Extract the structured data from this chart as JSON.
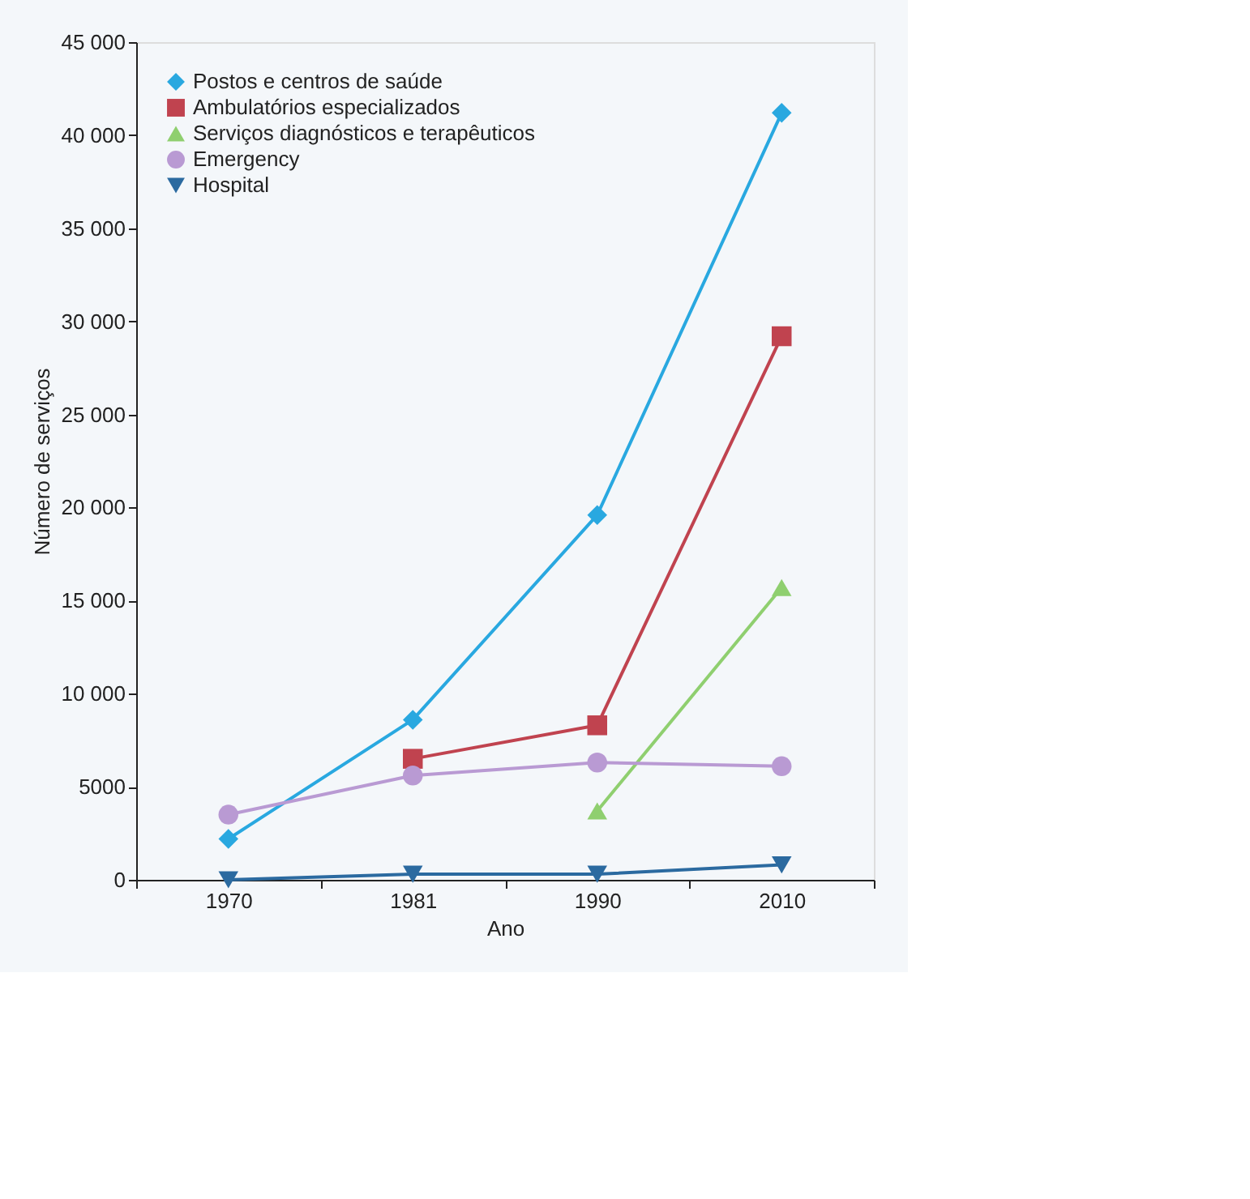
{
  "chart_data": {
    "type": "line",
    "xlabel": "Ano",
    "ylabel": "Número de serviços",
    "categories": [
      "1970",
      "1981",
      "1990",
      "2010"
    ],
    "series": [
      {
        "name": "Postos e centros de saúde",
        "color": "#29a8e0",
        "marker": "diamond",
        "values": [
          2200,
          8600,
          19600,
          41200
        ]
      },
      {
        "name": "Ambulatórios especializados",
        "color": "#c0434f",
        "marker": "square",
        "values": [
          null,
          6500,
          8300,
          29200
        ]
      },
      {
        "name": "Serviços diagnósticos e terapêuticos",
        "color": "#8fcf6f",
        "marker": "triangle",
        "values": [
          null,
          null,
          3700,
          15700
        ]
      },
      {
        "name": "Emergency",
        "color": "#b99ad3",
        "marker": "circle",
        "values": [
          3500,
          5600,
          6300,
          6100
        ]
      },
      {
        "name": "Hospital",
        "color": "#2b6aa0",
        "marker": "triangle-down",
        "values": [
          0,
          300,
          300,
          800
        ]
      }
    ],
    "ylim": [
      0,
      45000
    ],
    "yticks": [
      0,
      5000,
      {
        "value": 10000,
        "label": "10 000"
      },
      {
        "value": 15000,
        "label": "15 000"
      },
      {
        "value": 20000,
        "label": "20 000"
      },
      {
        "value": 25000,
        "label": "25 000"
      },
      {
        "value": 30000,
        "label": "30 000"
      },
      {
        "value": 35000,
        "label": "35 000"
      },
      {
        "value": 40000,
        "label": "40 000"
      },
      {
        "value": 45000,
        "label": "45 000"
      }
    ],
    "grid": false,
    "legend": "top left",
    "line_style": "solid"
  }
}
